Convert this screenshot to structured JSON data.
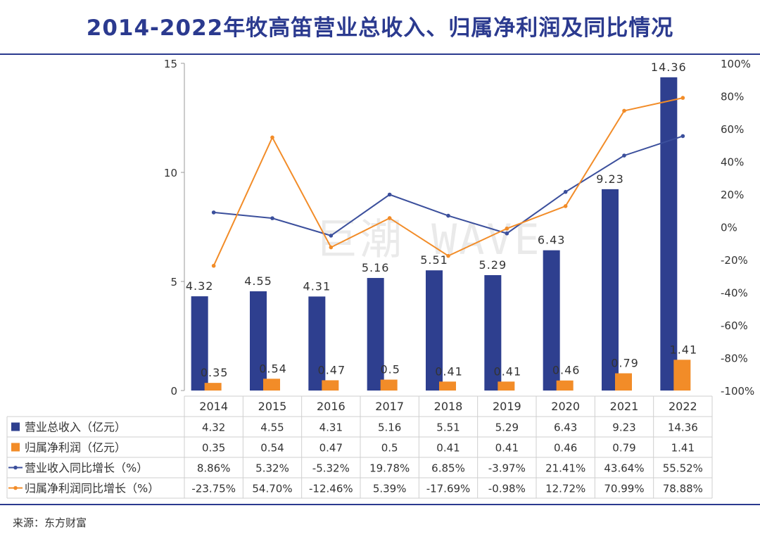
{
  "title": "2014-2022年牧高笛营业总收入、归属净利润及同比情况",
  "source": "来源：东方财富",
  "watermark": "巨潮 WAVE",
  "colors": {
    "revenue": "#2e3f8f",
    "profit": "#f28c28",
    "title": "#2b3a8f"
  },
  "chart_data": {
    "type": "bar",
    "categories": [
      "2014",
      "2015",
      "2016",
      "2017",
      "2018",
      "2019",
      "2020",
      "2021",
      "2022"
    ],
    "left_axis": {
      "ylim": [
        0,
        15
      ],
      "ticks": [
        "0",
        "5",
        "10",
        "15"
      ]
    },
    "right_axis": {
      "ylim": [
        -100,
        100
      ],
      "ticks": [
        "-100%",
        "-80%",
        "-60%",
        "-40%",
        "-20%",
        "0%",
        "20%",
        "40%",
        "60%",
        "80%",
        "100%"
      ]
    },
    "series": [
      {
        "name": "营业总收入（亿元）",
        "type": "bar",
        "axis": "left",
        "values": [
          4.32,
          4.55,
          4.31,
          5.16,
          5.51,
          5.29,
          6.43,
          9.23,
          14.36
        ],
        "labels": [
          "4.32",
          "4.55",
          "4.31",
          "5.16",
          "5.51",
          "5.29",
          "6.43",
          "9.23",
          "14.36"
        ]
      },
      {
        "name": "归属净利润（亿元）",
        "type": "bar",
        "axis": "left",
        "values": [
          0.35,
          0.54,
          0.47,
          0.5,
          0.41,
          0.41,
          0.46,
          0.79,
          1.41
        ],
        "labels": [
          "0.35",
          "0.54",
          "0.47",
          "0.5",
          "0.41",
          "0.41",
          "0.46",
          "0.79",
          "1.41"
        ]
      },
      {
        "name": "营业收入同比增长（%）",
        "type": "line",
        "axis": "right",
        "values": [
          8.86,
          5.32,
          -5.32,
          19.78,
          6.85,
          -3.97,
          21.41,
          43.64,
          55.52
        ],
        "labels": [
          "8.86%",
          "5.32%",
          "-5.32%",
          "19.78%",
          "6.85%",
          "-3.97%",
          "21.41%",
          "43.64%",
          "55.52%"
        ]
      },
      {
        "name": "归属净利润同比增长（%）",
        "type": "line",
        "axis": "right",
        "values": [
          -23.75,
          54.7,
          -12.46,
          5.39,
          -17.69,
          -0.98,
          12.72,
          70.99,
          78.88
        ],
        "labels": [
          "-23.75%",
          "54.70%",
          "-12.46%",
          "5.39%",
          "-17.69%",
          "-0.98%",
          "12.72%",
          "70.99%",
          "78.88%"
        ]
      }
    ]
  }
}
